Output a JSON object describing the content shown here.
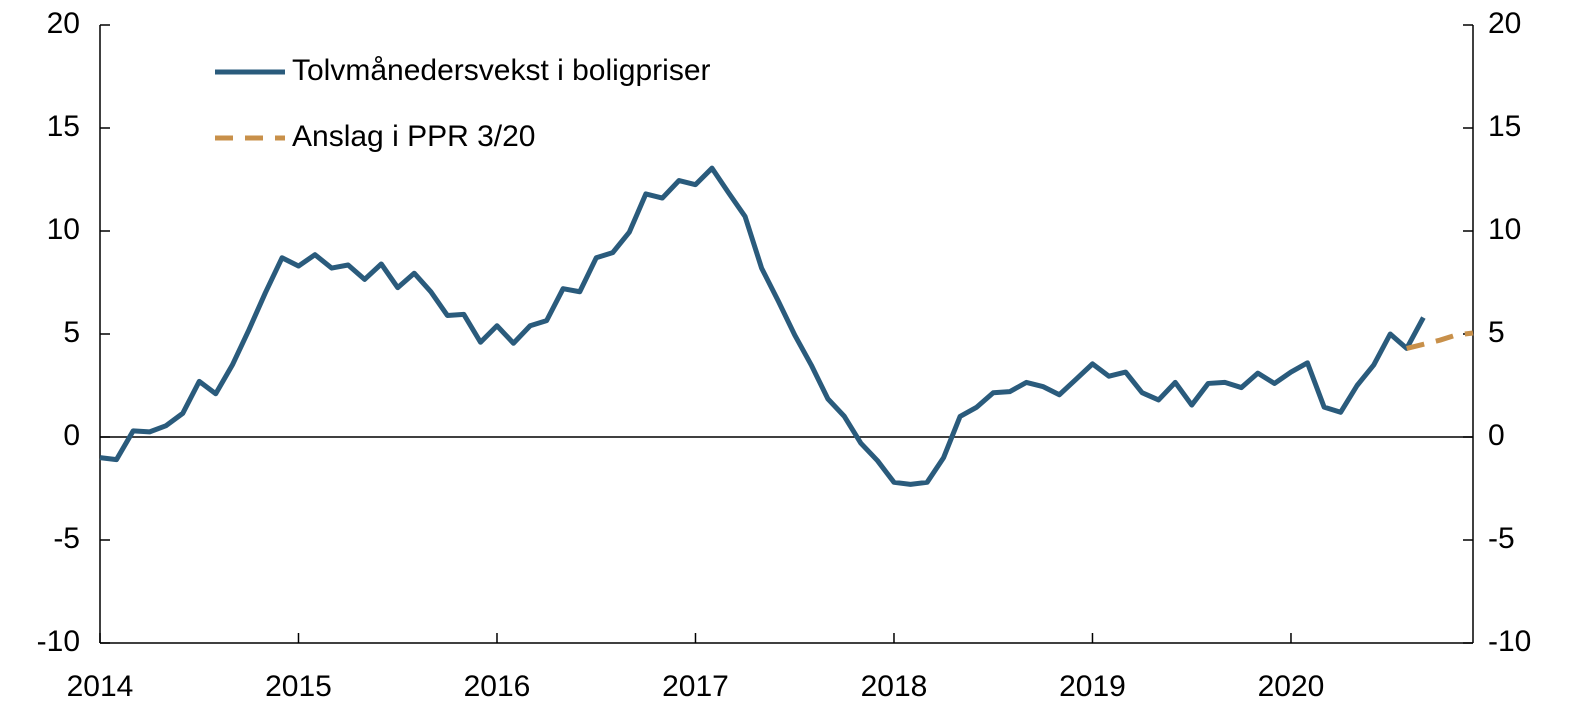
{
  "chart_data": {
    "type": "line",
    "x": [
      2014,
      2014.083,
      2014.167,
      2014.25,
      2014.333,
      2014.417,
      2014.5,
      2014.583,
      2014.667,
      2014.75,
      2014.833,
      2014.917,
      2015,
      2015.083,
      2015.167,
      2015.25,
      2015.333,
      2015.417,
      2015.5,
      2015.583,
      2015.667,
      2015.75,
      2015.833,
      2015.917,
      2016,
      2016.083,
      2016.167,
      2016.25,
      2016.333,
      2016.417,
      2016.5,
      2016.583,
      2016.667,
      2016.75,
      2016.833,
      2016.917,
      2017,
      2017.083,
      2017.167,
      2017.25,
      2017.333,
      2017.417,
      2017.5,
      2017.583,
      2017.667,
      2017.75,
      2017.833,
      2017.917,
      2018,
      2018.083,
      2018.167,
      2018.25,
      2018.333,
      2018.417,
      2018.5,
      2018.583,
      2018.667,
      2018.75,
      2018.833,
      2018.917,
      2019,
      2019.083,
      2019.167,
      2019.25,
      2019.333,
      2019.417,
      2019.5,
      2019.583,
      2019.667,
      2019.75,
      2019.833,
      2019.917,
      2020,
      2020.083,
      2020.167,
      2020.25,
      2020.333,
      2020.417,
      2020.5,
      2020.583,
      2020.667,
      2020.75,
      2020.833,
      2020.917
    ],
    "series": [
      {
        "name": "Tolvmånedersvekst i boligpriser",
        "color": "#2a5b7c",
        "dashed": false,
        "values": [
          -1.0,
          -1.1,
          0.3,
          0.25,
          0.55,
          1.15,
          2.7,
          2.1,
          3.5,
          5.2,
          7.0,
          8.7,
          8.3,
          8.85,
          8.2,
          8.35,
          7.65,
          8.4,
          7.25,
          7.95,
          7.05,
          5.9,
          5.95,
          4.6,
          5.4,
          4.55,
          5.4,
          5.65,
          7.2,
          7.05,
          8.7,
          8.95,
          9.95,
          11.8,
          11.6,
          12.45,
          12.25,
          13.05,
          11.85,
          10.7,
          8.2,
          6.6,
          4.95,
          3.5,
          1.85,
          1.0,
          -0.3,
          -1.15,
          -2.2,
          -2.3,
          -2.2,
          -1.0,
          1.0,
          1.45,
          2.15,
          2.2,
          2.65,
          2.45,
          2.05,
          2.8,
          3.55,
          2.95,
          3.15,
          2.15,
          1.8,
          2.65,
          1.55,
          2.6,
          2.65,
          2.4,
          3.1,
          2.6,
          3.15,
          3.6,
          1.45,
          1.2,
          2.5,
          3.5,
          5.0,
          4.3,
          5.8,
          null,
          null,
          null
        ]
      },
      {
        "name": "Anslag i PPR 3/20",
        "color": "#c8904a",
        "dashed": true,
        "values": [
          null,
          null,
          null,
          null,
          null,
          null,
          null,
          null,
          null,
          null,
          null,
          null,
          null,
          null,
          null,
          null,
          null,
          null,
          null,
          null,
          null,
          null,
          null,
          null,
          null,
          null,
          null,
          null,
          null,
          null,
          null,
          null,
          null,
          null,
          null,
          null,
          null,
          null,
          null,
          null,
          null,
          null,
          null,
          null,
          null,
          null,
          null,
          null,
          null,
          null,
          null,
          null,
          null,
          null,
          null,
          null,
          null,
          null,
          null,
          null,
          null,
          null,
          null,
          null,
          null,
          null,
          null,
          null,
          null,
          null,
          null,
          null,
          null,
          null,
          null,
          null,
          null,
          null,
          null,
          4.3,
          4.5,
          4.7,
          4.95,
          5.05
        ]
      }
    ],
    "xlim": [
      2014,
      2020.917
    ],
    "xticks": [
      2014,
      2015,
      2016,
      2017,
      2018,
      2019,
      2020
    ],
    "ylim": [
      -10,
      20
    ],
    "yticks": [
      -10,
      -5,
      0,
      5,
      10,
      15,
      20
    ],
    "y2lim": [
      -10,
      20
    ],
    "y2ticks": [
      -10,
      -5,
      0,
      5,
      10,
      15,
      20
    ],
    "zero_line": true,
    "legend": "top-left"
  }
}
